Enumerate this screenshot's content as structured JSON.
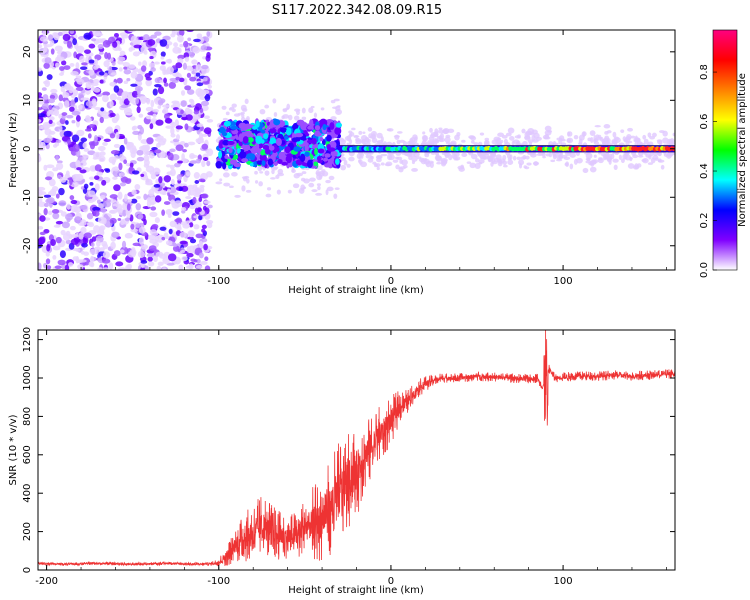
{
  "title": "S117.2022.342.08.09.R15",
  "chart_data": [
    {
      "type": "heatmap",
      "xlabel": "Height of straight line (km)",
      "ylabel": "Frequency (Hz)",
      "xlim": [
        -205,
        165
      ],
      "ylim": [
        -25,
        24.5
      ],
      "xticks": [
        -200,
        -100,
        0,
        100
      ],
      "yticks": [
        -20,
        -10,
        0,
        10,
        20
      ],
      "colorbar": {
        "label": "Normalized spectral amplitude",
        "ticks": [
          0.0,
          0.2,
          0.4,
          0.6,
          0.8
        ],
        "tick_labels": [
          "0.0",
          "0.2",
          "0.4",
          "0.6",
          "0.8"
        ],
        "range": [
          0,
          0.97
        ],
        "colormap": [
          "#ffffff",
          "#8000ff",
          "#0000ff",
          "#00ffff",
          "#00ff00",
          "#ffff00",
          "#ff8000",
          "#ff0000",
          "#ff0080"
        ]
      },
      "features": {
        "noise_region": [
          -205,
          -105
        ],
        "carrier_frequency_hz": 0,
        "carrier_start_km": -30,
        "turbulent_region": [
          -100,
          -30
        ]
      }
    },
    {
      "type": "line",
      "xlabel": "Height of straight line (km)",
      "ylabel": "SNR (10 * v/v)",
      "xlim": [
        -205,
        165
      ],
      "ylim": [
        0,
        1250
      ],
      "xticks": [
        -200,
        -100,
        0,
        100
      ],
      "yticks": [
        0,
        200,
        400,
        600,
        800,
        1000,
        1200
      ],
      "color": "#ee3333",
      "series": [
        {
          "name": "SNR",
          "x": [
            -205,
            -190,
            -170,
            -150,
            -130,
            -115,
            -105,
            -100,
            -95,
            -90,
            -85,
            -80,
            -75,
            -70,
            -65,
            -60,
            -55,
            -50,
            -45,
            -40,
            -35,
            -30,
            -25,
            -20,
            -15,
            -10,
            -5,
            0,
            5,
            10,
            15,
            20,
            25,
            30,
            40,
            50,
            60,
            70,
            80,
            85,
            88,
            90,
            92,
            95,
            100,
            110,
            120,
            130,
            140,
            150,
            160,
            165
          ],
          "y": [
            35,
            30,
            35,
            30,
            35,
            30,
            32,
            40,
            80,
            130,
            170,
            190,
            230,
            200,
            180,
            170,
            180,
            220,
            240,
            260,
            330,
            400,
            460,
            520,
            600,
            650,
            720,
            780,
            850,
            880,
            940,
            970,
            990,
            1000,
            1000,
            1010,
            1005,
            1000,
            995,
            1000,
            950,
            1000,
            1050,
            1000,
            1005,
            1010,
            1010,
            1015,
            1010,
            1015,
            1020,
            1025
          ],
          "noise_amp": [
            8,
            8,
            8,
            8,
            8,
            8,
            10,
            20,
            60,
            90,
            130,
            150,
            170,
            150,
            130,
            110,
            130,
            160,
            200,
            220,
            250,
            280,
            260,
            250,
            200,
            180,
            150,
            130,
            90,
            60,
            50,
            40,
            30,
            25,
            25,
            25,
            25,
            25,
            25,
            25,
            25,
            25,
            25,
            25,
            25,
            25,
            25,
            25,
            25,
            25,
            25,
            25
          ]
        }
      ]
    }
  ]
}
